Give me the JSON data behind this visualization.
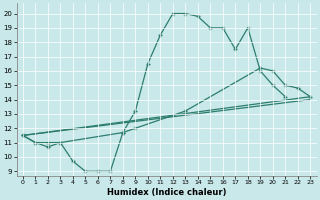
{
  "xlabel": "Humidex (Indice chaleur)",
  "xlim": [
    -0.5,
    23.5
  ],
  "ylim": [
    8.7,
    20.7
  ],
  "bg_color": "#c8e8ea",
  "line_color": "#2d7d6d",
  "line1_x": [
    0,
    1,
    2,
    3,
    4,
    5,
    6,
    7,
    8,
    9,
    10,
    11,
    12,
    13,
    14,
    15,
    16,
    17,
    18,
    19,
    20,
    21
  ],
  "line1_y": [
    11.5,
    11.0,
    10.7,
    11.0,
    9.7,
    9.0,
    9.0,
    9.0,
    11.7,
    13.2,
    16.5,
    18.5,
    20.0,
    20.0,
    19.8,
    19.0,
    19.0,
    17.5,
    19.0,
    16.0,
    15.0,
    14.2
  ],
  "line2_x": [
    0,
    1,
    2,
    3,
    8,
    9,
    13,
    19,
    20,
    21,
    22,
    23
  ],
  "line2_y": [
    11.5,
    11.0,
    11.0,
    11.0,
    11.7,
    12.0,
    13.2,
    16.2,
    16.0,
    15.0,
    14.8,
    14.2
  ],
  "line3_x": [
    0,
    23
  ],
  "line3_y": [
    11.5,
    14.2
  ],
  "line4_x": [
    0,
    23
  ],
  "line4_y": [
    11.5,
    14.0
  ],
  "ytick_labels": [
    "9",
    "10",
    "11",
    "12",
    "13",
    "14",
    "15",
    "16",
    "17",
    "18",
    "19",
    "20"
  ],
  "ytick_vals": [
    9,
    10,
    11,
    12,
    13,
    14,
    15,
    16,
    17,
    18,
    19,
    20
  ],
  "xtick_vals": [
    0,
    1,
    2,
    3,
    4,
    5,
    6,
    7,
    8,
    9,
    10,
    11,
    12,
    13,
    14,
    15,
    16,
    17,
    18,
    19,
    20,
    21,
    22,
    23
  ]
}
